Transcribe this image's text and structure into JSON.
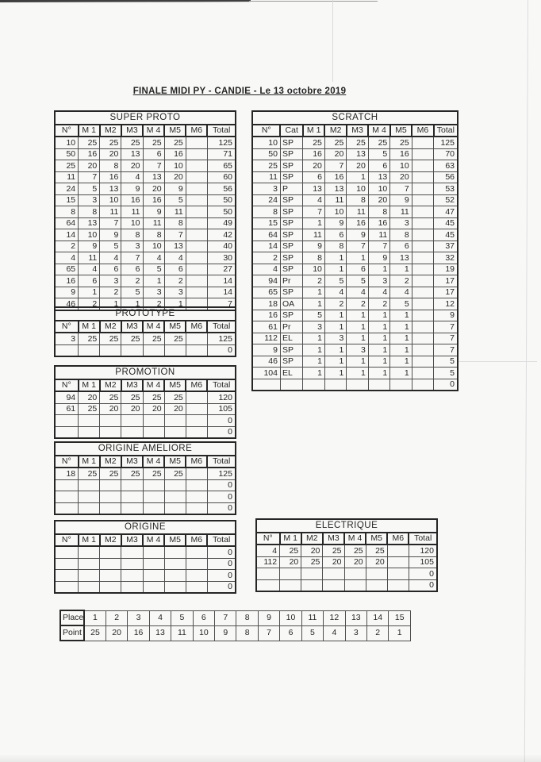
{
  "page": {
    "title": "FINALE MIDI PY - CANDIE - Le 13 octobre 2019"
  },
  "headers": [
    "N°",
    "M 1",
    "M2",
    "M3",
    "M 4",
    "M5",
    "M6",
    "Total"
  ],
  "headers_cat": [
    "N°",
    "Cat",
    "M 1",
    "M2",
    "M3",
    "M 4",
    "M5",
    "M6",
    "Total"
  ],
  "tables": {
    "super_proto": {
      "title": "SUPER PROTO",
      "has_cat": false,
      "rows": [
        [
          "10",
          "25",
          "25",
          "25",
          "25",
          "25",
          "",
          "125"
        ],
        [
          "50",
          "16",
          "20",
          "13",
          "6",
          "16",
          "",
          "71"
        ],
        [
          "25",
          "20",
          "8",
          "20",
          "7",
          "10",
          "",
          "65"
        ],
        [
          "11",
          "7",
          "16",
          "4",
          "13",
          "20",
          "",
          "60"
        ],
        [
          "24",
          "5",
          "13",
          "9",
          "20",
          "9",
          "",
          "56"
        ],
        [
          "15",
          "3",
          "10",
          "16",
          "16",
          "5",
          "",
          "50"
        ],
        [
          "8",
          "8",
          "11",
          "11",
          "9",
          "11",
          "",
          "50"
        ],
        [
          "64",
          "13",
          "7",
          "10",
          "11",
          "8",
          "",
          "49"
        ],
        [
          "14",
          "10",
          "9",
          "8",
          "8",
          "7",
          "",
          "42"
        ],
        [
          "2",
          "9",
          "5",
          "3",
          "10",
          "13",
          "",
          "40"
        ],
        [
          "4",
          "11",
          "4",
          "7",
          "4",
          "4",
          "",
          "30"
        ],
        [
          "65",
          "4",
          "6",
          "6",
          "5",
          "6",
          "",
          "27"
        ],
        [
          "16",
          "6",
          "3",
          "2",
          "1",
          "2",
          "",
          "14"
        ],
        [
          "9",
          "1",
          "2",
          "5",
          "3",
          "3",
          "",
          "14"
        ],
        [
          "46",
          "2",
          "1",
          "1",
          "2",
          "1",
          "",
          "7"
        ]
      ]
    },
    "scratch": {
      "title": "SCRATCH",
      "has_cat": true,
      "rows": [
        [
          "10",
          "SP",
          "25",
          "25",
          "25",
          "25",
          "25",
          "",
          "125"
        ],
        [
          "50",
          "SP",
          "16",
          "20",
          "13",
          "5",
          "16",
          "",
          "70"
        ],
        [
          "25",
          "SP",
          "20",
          "7",
          "20",
          "6",
          "10",
          "",
          "63"
        ],
        [
          "11",
          "SP",
          "6",
          "16",
          "1",
          "13",
          "20",
          "",
          "56"
        ],
        [
          "3",
          "P",
          "13",
          "13",
          "10",
          "10",
          "7",
          "",
          "53"
        ],
        [
          "24",
          "SP",
          "4",
          "11",
          "8",
          "20",
          "9",
          "",
          "52"
        ],
        [
          "8",
          "SP",
          "7",
          "10",
          "11",
          "8",
          "11",
          "",
          "47"
        ],
        [
          "15",
          "SP",
          "1",
          "9",
          "16",
          "16",
          "3",
          "",
          "45"
        ],
        [
          "64",
          "SP",
          "11",
          "6",
          "9",
          "11",
          "8",
          "",
          "45"
        ],
        [
          "14",
          "SP",
          "9",
          "8",
          "7",
          "7",
          "6",
          "",
          "37"
        ],
        [
          "2",
          "SP",
          "8",
          "1",
          "1",
          "9",
          "13",
          "",
          "32"
        ],
        [
          "4",
          "SP",
          "10",
          "1",
          "6",
          "1",
          "1",
          "",
          "19"
        ],
        [
          "94",
          "Pr",
          "2",
          "5",
          "5",
          "3",
          "2",
          "",
          "17"
        ],
        [
          "65",
          "SP",
          "1",
          "4",
          "4",
          "4",
          "4",
          "",
          "17"
        ],
        [
          "18",
          "OA",
          "1",
          "2",
          "2",
          "2",
          "5",
          "",
          "12"
        ],
        [
          "16",
          "SP",
          "5",
          "1",
          "1",
          "1",
          "1",
          "",
          "9"
        ],
        [
          "61",
          "Pr",
          "3",
          "1",
          "1",
          "1",
          "1",
          "",
          "7"
        ],
        [
          "112",
          "EL",
          "1",
          "3",
          "1",
          "1",
          "1",
          "",
          "7"
        ],
        [
          "9",
          "SP",
          "1",
          "1",
          "3",
          "1",
          "1",
          "",
          "7"
        ],
        [
          "46",
          "SP",
          "1",
          "1",
          "1",
          "1",
          "1",
          "",
          "5"
        ],
        [
          "104",
          "EL",
          "1",
          "1",
          "1",
          "1",
          "1",
          "",
          "5"
        ],
        [
          "",
          "",
          "",
          "",
          "",
          "",
          "",
          "",
          "0"
        ]
      ]
    },
    "prototype": {
      "title": "PROTOTYPE",
      "has_cat": false,
      "rows": [
        [
          "3",
          "25",
          "25",
          "25",
          "25",
          "25",
          "",
          "125"
        ],
        [
          "",
          "",
          "",
          "",
          "",
          "",
          "",
          "0"
        ]
      ]
    },
    "promotion": {
      "title": "PROMOTION",
      "has_cat": false,
      "rows": [
        [
          "94",
          "20",
          "25",
          "25",
          "25",
          "25",
          "",
          "120"
        ],
        [
          "61",
          "25",
          "20",
          "20",
          "20",
          "20",
          "",
          "105"
        ],
        [
          "",
          "",
          "",
          "",
          "",
          "",
          "",
          "0"
        ],
        [
          "",
          "",
          "",
          "",
          "",
          "",
          "",
          "0"
        ]
      ]
    },
    "origine_amelioree": {
      "title": "ORIGINE AMELIORE",
      "has_cat": false,
      "rows": [
        [
          "18",
          "25",
          "25",
          "25",
          "25",
          "25",
          "",
          "125"
        ],
        [
          "",
          "",
          "",
          "",
          "",
          "",
          "",
          "0"
        ],
        [
          "",
          "",
          "",
          "",
          "",
          "",
          "",
          "0"
        ],
        [
          "",
          "",
          "",
          "",
          "",
          "",
          "",
          "0"
        ]
      ]
    },
    "origine": {
      "title": "ORIGINE",
      "has_cat": false,
      "rows": [
        [
          "",
          "",
          "",
          "",
          "",
          "",
          "",
          "0"
        ],
        [
          "",
          "",
          "",
          "",
          "",
          "",
          "",
          "0"
        ],
        [
          "",
          "",
          "",
          "",
          "",
          "",
          "",
          "0"
        ],
        [
          "",
          "",
          "",
          "",
          "",
          "",
          "",
          "0"
        ]
      ]
    },
    "electrique": {
      "title": "ELECTRIQUE",
      "has_cat": false,
      "rows": [
        [
          "4",
          "25",
          "20",
          "25",
          "25",
          "25",
          "",
          "120"
        ],
        [
          "112",
          "20",
          "25",
          "20",
          "20",
          "20",
          "",
          "105"
        ],
        [
          "",
          "",
          "",
          "",
          "",
          "",
          "",
          "0"
        ],
        [
          "",
          "",
          "",
          "",
          "",
          "",
          "",
          "0"
        ]
      ]
    }
  },
  "scale": {
    "place_label": "Place",
    "point_label": "Point",
    "places": [
      "1",
      "2",
      "3",
      "4",
      "5",
      "6",
      "7",
      "8",
      "9",
      "10",
      "11",
      "12",
      "13",
      "14",
      "15"
    ],
    "points": [
      "25",
      "20",
      "16",
      "13",
      "11",
      "10",
      "9",
      "8",
      "7",
      "6",
      "5",
      "4",
      "3",
      "2",
      "1"
    ]
  },
  "colors": {
    "ink": "#262626",
    "grid": "#4e4e4e",
    "paper": "#f8f8f6"
  }
}
